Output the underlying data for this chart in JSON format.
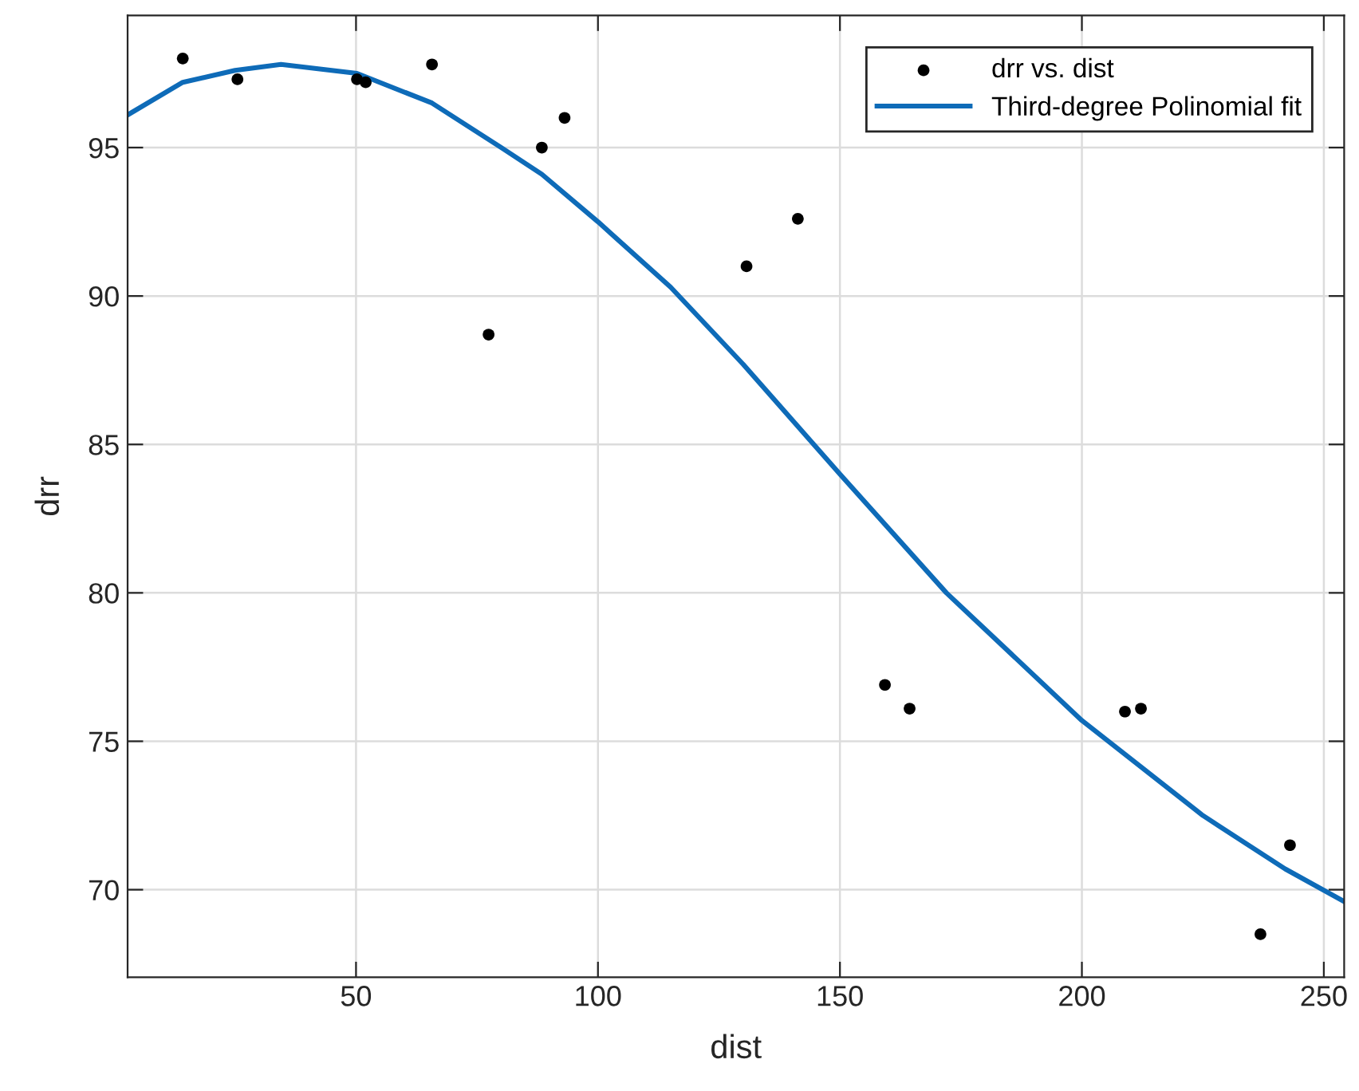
{
  "chart_data": {
    "type": "scatter",
    "xlabel": "dist",
    "ylabel": "drr",
    "series": [
      {
        "name": "drr vs. dist",
        "color": "#000000",
        "marker": "circle",
        "x": [
          14.2,
          25.5,
          50.2,
          52.0,
          65.7,
          77.4,
          88.4,
          93.1,
          130.7,
          141.3,
          159.3,
          164.4,
          208.9,
          212.2,
          236.9,
          243.0
        ],
        "values": [
          98.0,
          97.3,
          97.3,
          97.2,
          97.8,
          88.7,
          95.0,
          96.0,
          91.0,
          92.6,
          76.9,
          76.1,
          76.0,
          76.1,
          68.5,
          71.5
        ]
      },
      {
        "name": "Third-degree Polinomial fit",
        "type": "line",
        "color": "#0e6bb8",
        "line_style": "solid",
        "marker": "none",
        "x": [
          2.8,
          14.2,
          25,
          34.5,
          50.2,
          65.7,
          80,
          88.4,
          100,
          115,
          130,
          150,
          172,
          200,
          225,
          242,
          254.2
        ],
        "values": [
          96.1,
          97.2,
          97.6,
          97.8,
          97.5,
          96.5,
          95.0,
          94.1,
          92.5,
          90.3,
          87.7,
          84.0,
          80.0,
          75.7,
          72.5,
          70.7,
          69.6
        ]
      }
    ],
    "xlim": [
      2.8,
      254.2
    ],
    "ylim": [
      67.05,
      99.45
    ],
    "xticks": [
      50,
      100,
      150,
      200,
      250
    ],
    "yticks": [
      70,
      75,
      80,
      85,
      90,
      95
    ],
    "grid": true,
    "legend": "top right"
  }
}
